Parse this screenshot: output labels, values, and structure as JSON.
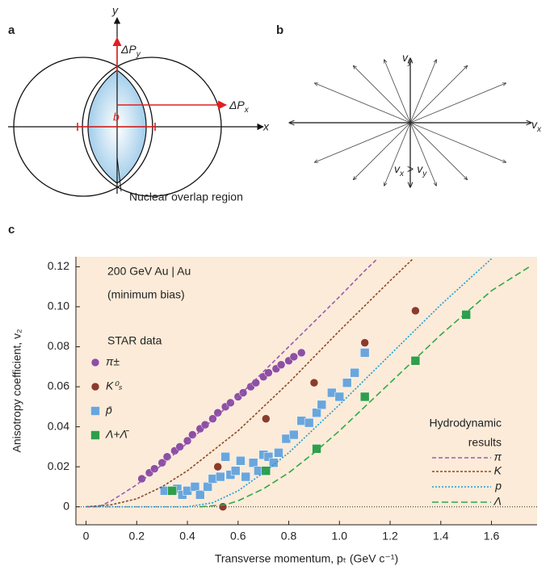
{
  "panel_labels": [
    "a",
    "b",
    "c"
  ],
  "diagram_a": {
    "y_label": "y",
    "x_label": "x",
    "delta_py": {
      "text": "ΔP",
      "sub": "y"
    },
    "delta_px": {
      "text": "ΔP",
      "sub": "x"
    },
    "b_label": "b",
    "overlap_label": "Nuclear overlap region"
  },
  "diagram_b": {
    "vy": {
      "text": "v",
      "sub": "y"
    },
    "vx": {
      "text": "v",
      "sub": "x"
    },
    "relation": {
      "left": {
        "text": "v",
        "sub": "x"
      },
      "op": ">",
      "right": {
        "text": "v",
        "sub": "y"
      }
    }
  },
  "chart_data": {
    "type": "scatter",
    "x_label": "Transverse momentum, pₜ (GeV c⁻¹)",
    "y_label": "Anisotropy coefficient, v₂",
    "annotations": [
      "200 GeV Au | Au",
      "(minimum bias)",
      "STAR data",
      "Hydrodynamic",
      "results"
    ],
    "xlim": [
      -0.04,
      1.78
    ],
    "ylim": [
      -0.009,
      0.125
    ],
    "xticks": [
      0,
      0.2,
      0.4,
      0.6,
      0.8,
      {
        "value": 1,
        "label": "1.0"
      },
      1.2,
      1.4,
      1.6
    ],
    "yticks": [
      0,
      0.02,
      0.04,
      0.06,
      0.08,
      {
        "value": 0.1,
        "label": "0.10"
      },
      0.12
    ],
    "background": "#fcebd8",
    "series": [
      {
        "name": "π±",
        "color": "#8e4fa3",
        "marker": "circle",
        "x": [
          0.22,
          0.25,
          0.27,
          0.3,
          0.32,
          0.35,
          0.37,
          0.4,
          0.42,
          0.45,
          0.47,
          0.5,
          0.52,
          0.55,
          0.57,
          0.6,
          0.62,
          0.65,
          0.67,
          0.7,
          0.72,
          0.75,
          0.77,
          0.8,
          0.82,
          0.85
        ],
        "values": [
          0.014,
          0.017,
          0.019,
          0.022,
          0.025,
          0.028,
          0.03,
          0.033,
          0.036,
          0.039,
          0.041,
          0.044,
          0.047,
          0.05,
          0.052,
          0.055,
          0.057,
          0.06,
          0.062,
          0.065,
          0.067,
          0.069,
          0.071,
          0.073,
          0.075,
          0.077
        ]
      },
      {
        "name": "K⁰ₛ",
        "color": "#8c3b2b",
        "marker": "circle",
        "x": [
          0.33,
          0.52,
          0.54,
          0.71,
          0.9,
          1.1,
          1.3
        ],
        "values": [
          0.008,
          0.02,
          0.0,
          0.044,
          0.062,
          0.082,
          0.098
        ]
      },
      {
        "name": "p̄",
        "color": "#6aa6dc",
        "marker": "square",
        "x": [
          0.31,
          0.36,
          0.38,
          0.4,
          0.43,
          0.45,
          0.48,
          0.5,
          0.53,
          0.55,
          0.57,
          0.59,
          0.61,
          0.63,
          0.66,
          0.68,
          0.7,
          0.72,
          0.74,
          0.76,
          0.79,
          0.82,
          0.85,
          0.88,
          0.91,
          0.93,
          0.97,
          1.0,
          1.03,
          1.06,
          1.1
        ],
        "values": [
          0.008,
          0.009,
          0.006,
          0.008,
          0.01,
          0.006,
          0.01,
          0.014,
          0.015,
          0.025,
          0.016,
          0.018,
          0.023,
          0.015,
          0.022,
          0.018,
          0.026,
          0.025,
          0.022,
          0.027,
          0.034,
          0.036,
          0.043,
          0.042,
          0.047,
          0.051,
          0.057,
          0.055,
          0.062,
          0.067,
          0.077
        ]
      },
      {
        "name": "Λ+Λ̄",
        "color": "#2f9e4b",
        "marker": "square",
        "x": [
          0.34,
          0.71,
          0.91,
          1.1,
          1.3,
          1.5
        ],
        "values": [
          0.008,
          0.018,
          0.029,
          0.055,
          0.073,
          0.096
        ]
      },
      {
        "name": "π",
        "color": "#9b5bb5",
        "dash": "5,3",
        "x": [
          0,
          0.05,
          0.1,
          0.2,
          0.3,
          0.4,
          0.6,
          0.8,
          1.0,
          1.1,
          1.15
        ],
        "values": [
          0,
          0,
          0.003,
          0.011,
          0.021,
          0.032,
          0.055,
          0.08,
          0.105,
          0.118,
          0.124
        ]
      },
      {
        "name": "K",
        "color": "#8b4a2e",
        "dash": "3,2",
        "x": [
          0,
          0.1,
          0.2,
          0.3,
          0.4,
          0.6,
          0.8,
          1.0,
          1.2,
          1.29
        ],
        "values": [
          0,
          0.001,
          0.004,
          0.01,
          0.018,
          0.038,
          0.062,
          0.088,
          0.113,
          0.124
        ]
      },
      {
        "name": "p",
        "color": "#1f9bd7",
        "dash": "2,2",
        "x": [
          0,
          0.4,
          0.5,
          0.6,
          0.7,
          0.8,
          1.0,
          1.2,
          1.4,
          1.6
        ],
        "values": [
          0,
          0,
          0.002,
          0.008,
          0.017,
          0.027,
          0.051,
          0.076,
          0.101,
          0.124
        ]
      },
      {
        "name": "Λ",
        "color": "#2ea84c",
        "dash": "8,4",
        "x": [
          0.45,
          0.55,
          0.6,
          0.7,
          0.8,
          0.9,
          1.0,
          1.2,
          1.4,
          1.6,
          1.75
        ],
        "values": [
          0,
          0.001,
          0.003,
          0.009,
          0.017,
          0.027,
          0.038,
          0.062,
          0.086,
          0.108,
          0.12
        ]
      }
    ]
  }
}
